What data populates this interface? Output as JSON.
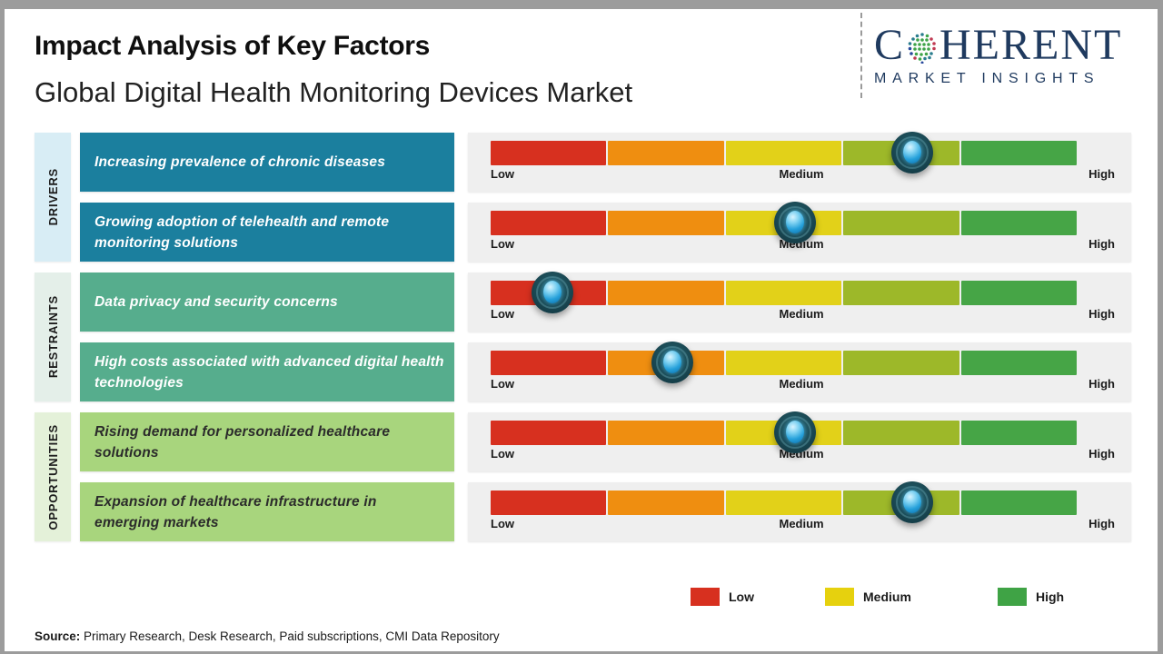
{
  "header": {
    "title": "Impact Analysis of Key Factors",
    "subtitle": "Global Digital Health Monitoring Devices Market",
    "logo": {
      "word_start": "C",
      "word_end": "HERENT",
      "tagline": "MARKET INSIGHTS",
      "color": "#1f3a5f"
    }
  },
  "scale_labels": {
    "low": "Low",
    "medium": "Medium",
    "high": "High"
  },
  "bar": {
    "segment_colors": [
      "#d7301f",
      "#ef8e10",
      "#e2d119",
      "#9db829",
      "#46a546"
    ]
  },
  "groups": [
    {
      "label": "DRIVERS",
      "band_color": "#d8edf5",
      "box_color": "#1b7f9e",
      "text_color": "#ffffff",
      "factors": [
        {
          "text": "Increasing prevalence of chronic diseases",
          "marker_pct": 72
        },
        {
          "text": "Growing adoption of telehealth and remote monitoring solutions",
          "marker_pct": 52
        }
      ]
    },
    {
      "label": "RESTRAINTS",
      "band_color": "#e4efe9",
      "box_color": "#56ad8d",
      "text_color": "#ffffff",
      "factors": [
        {
          "text": "Data privacy and security concerns",
          "marker_pct": 10.5
        },
        {
          "text": "High costs associated with advanced digital health technologies",
          "marker_pct": 31
        }
      ]
    },
    {
      "label": "OPPORTUNITIES",
      "band_color": "#e4f1d9",
      "box_color": "#a8d57d",
      "text_color": "#2b2b2b",
      "factors": [
        {
          "text": "Rising demand for personalized healthcare solutions",
          "marker_pct": 52
        },
        {
          "text": "Expansion of healthcare infrastructure in emerging markets",
          "marker_pct": 72
        }
      ]
    }
  ],
  "legend": [
    {
      "label": "Low",
      "color": "#d7301f"
    },
    {
      "label": "Medium",
      "color": "#e6d10e"
    },
    {
      "label": "High",
      "color": "#3fa345"
    }
  ],
  "source": {
    "prefix": "Source:",
    "text": " Primary Research, Desk Research, Paid subscriptions, CMI Data Repository"
  },
  "chart_data": {
    "type": "scatter",
    "title": "Impact Analysis of Key Factors",
    "subtitle": "Global Digital Health Monitoring Devices Market",
    "x_axis": {
      "scale": [
        "Low",
        "Medium",
        "High"
      ],
      "range_pct": [
        0,
        100
      ],
      "segments": 5
    },
    "legend": [
      "Low",
      "Medium",
      "High"
    ],
    "legend_position": "bottom",
    "points": [
      {
        "group": "DRIVERS",
        "factor": "Increasing prevalence of chronic diseases",
        "impact_pct": 72,
        "impact_reading": "Medium-High"
      },
      {
        "group": "DRIVERS",
        "factor": "Growing adoption of telehealth and remote monitoring solutions",
        "impact_pct": 52,
        "impact_reading": "Medium"
      },
      {
        "group": "RESTRAINTS",
        "factor": "Data privacy and security concerns",
        "impact_pct": 10.5,
        "impact_reading": "Low"
      },
      {
        "group": "RESTRAINTS",
        "factor": "High costs associated with advanced digital health technologies",
        "impact_pct": 31,
        "impact_reading": "Low-Medium"
      },
      {
        "group": "OPPORTUNITIES",
        "factor": "Rising demand for personalized healthcare solutions",
        "impact_pct": 52,
        "impact_reading": "Medium"
      },
      {
        "group": "OPPORTUNITIES",
        "factor": "Expansion of healthcare infrastructure in emerging markets",
        "impact_pct": 72,
        "impact_reading": "Medium-High"
      }
    ]
  }
}
